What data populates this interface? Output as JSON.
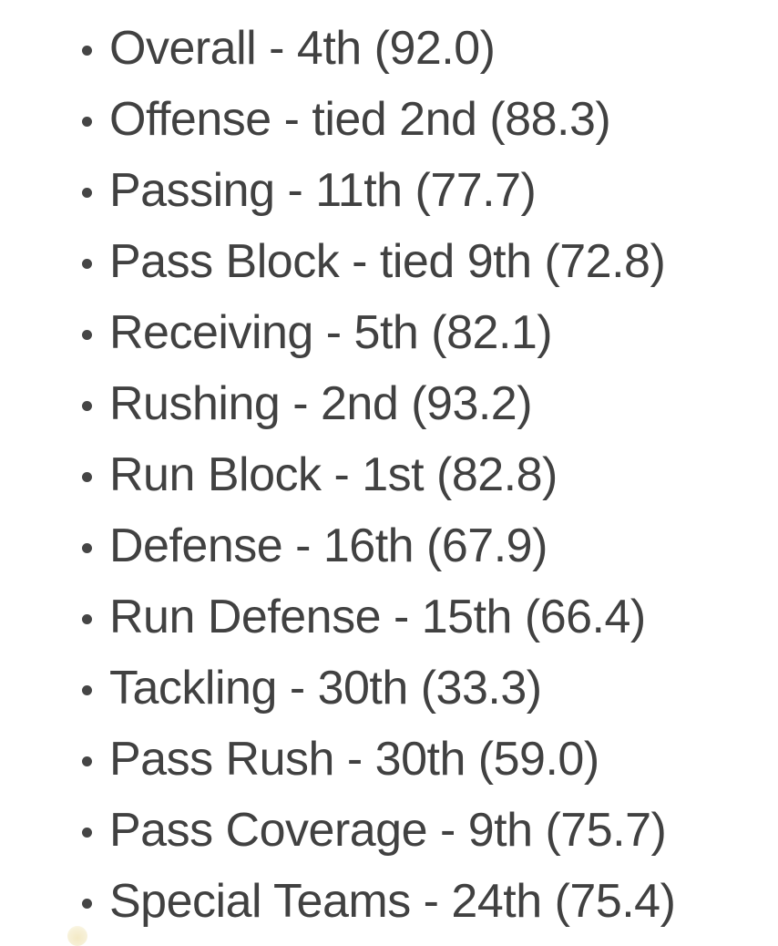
{
  "page": {
    "background": "#ffffff",
    "text_color": "#414141"
  },
  "grades_list": {
    "items": [
      {
        "category": "Overall",
        "rank": "4th",
        "grade": "92.0",
        "text": "Overall - 4th (92.0)"
      },
      {
        "category": "Offense",
        "rank": "tied 2nd",
        "grade": "88.3",
        "text": "Offense - tied 2nd (88.3)"
      },
      {
        "category": "Passing",
        "rank": "11th",
        "grade": "77.7",
        "text": "Passing - 11th (77.7)"
      },
      {
        "category": "Pass Block",
        "rank": "tied 9th",
        "grade": "72.8",
        "text": "Pass Block - tied 9th (72.8)"
      },
      {
        "category": "Receiving",
        "rank": "5th",
        "grade": "82.1",
        "text": "Receiving - 5th (82.1)"
      },
      {
        "category": "Rushing",
        "rank": "2nd",
        "grade": "93.2",
        "text": "Rushing - 2nd (93.2)"
      },
      {
        "category": "Run Block",
        "rank": "1st",
        "grade": "82.8",
        "text": "Run Block - 1st (82.8)"
      },
      {
        "category": "Defense",
        "rank": "16th",
        "grade": "67.9",
        "text": "Defense - 16th (67.9)"
      },
      {
        "category": "Run Defense",
        "rank": "15th",
        "grade": "66.4",
        "text": "Run Defense - 15th (66.4)"
      },
      {
        "category": "Tackling",
        "rank": "30th",
        "grade": "33.3",
        "text": "Tackling - 30th (33.3)"
      },
      {
        "category": "Pass Rush",
        "rank": "30th",
        "grade": "59.0",
        "text": "Pass Rush - 30th (59.0)"
      },
      {
        "category": "Pass Coverage",
        "rank": "9th",
        "grade": "75.7",
        "text": "Pass Coverage - 9th (75.7)"
      },
      {
        "category": "Special Teams",
        "rank": "24th",
        "grade": "75.4",
        "text": "Special Teams - 24th (75.4)"
      }
    ]
  },
  "artifact": {
    "description": "partially visible pale-yellow emoji top edge at bottom-left",
    "color": "#f3e9c4"
  }
}
